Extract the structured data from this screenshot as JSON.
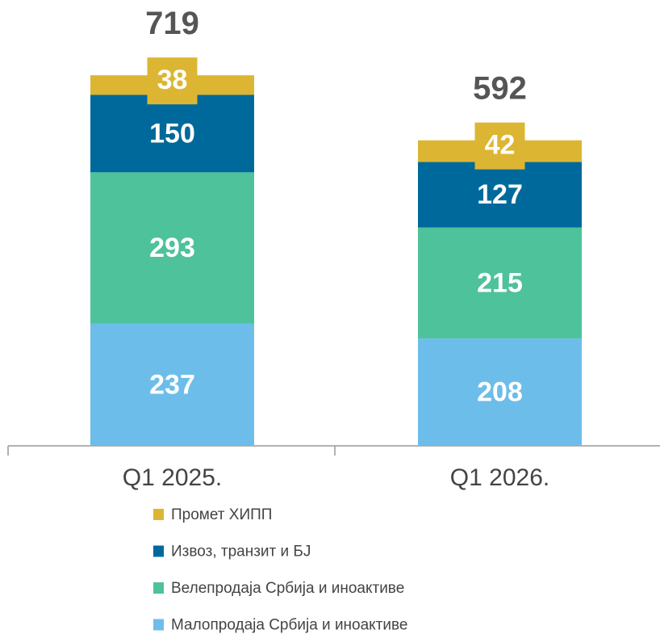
{
  "chart_data": {
    "type": "stacked_bar",
    "categories": [
      "Q1 2025.",
      "Q1 2026."
    ],
    "series": [
      {
        "name": "Малопродаја Србија и иноактиве",
        "color": "#6dbdea",
        "values": [
          237,
          208
        ]
      },
      {
        "name": "Велепродаја Србија и иноактиве",
        "color": "#4ec29a",
        "values": [
          293,
          215
        ]
      },
      {
        "name": "Извоз, транзит и БЈ",
        "color": "#00699b",
        "values": [
          150,
          127
        ]
      },
      {
        "name": "Промет ХИПП",
        "color": "#dcb632",
        "values": [
          38,
          42
        ]
      }
    ],
    "totals": [
      719,
      592
    ]
  }
}
